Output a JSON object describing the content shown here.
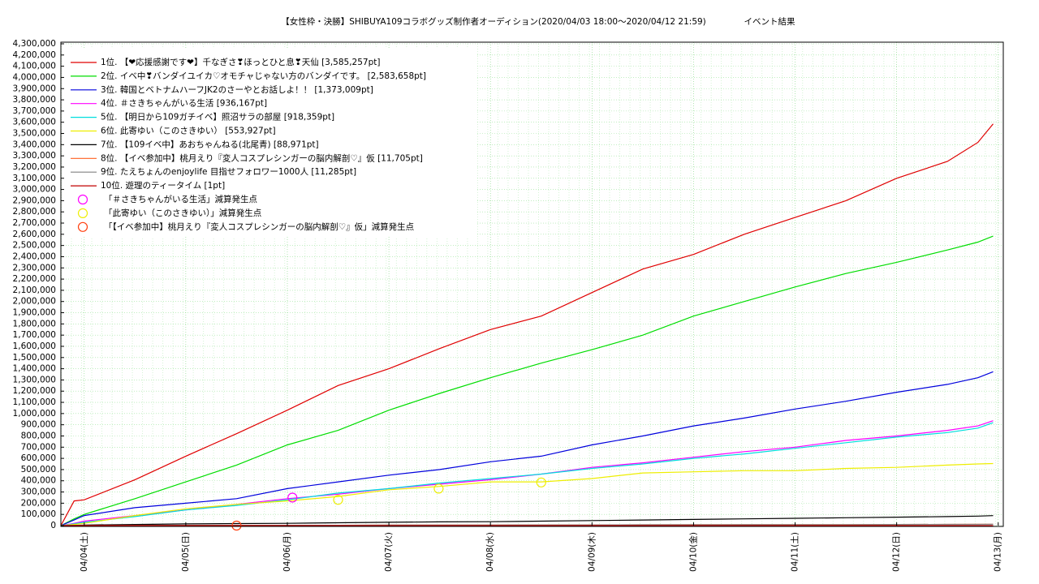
{
  "chart_data": {
    "type": "line",
    "title": "【女性枠・決勝】SHIBUYA109コラボグッズ制作者オーディション(2020/04/03 18:00～2020/04/12 21:59)",
    "subtitle": "イベント結果",
    "grid": true,
    "legend": "top-left",
    "xlim": [
      0.77,
      10.05
    ],
    "xticks": [
      {
        "value": 1,
        "label": "04/04(土)"
      },
      {
        "value": 2,
        "label": "04/05(日)"
      },
      {
        "value": 3,
        "label": "04/06(月)"
      },
      {
        "value": 4,
        "label": "04/07(火)"
      },
      {
        "value": 5,
        "label": "04/08(水)"
      },
      {
        "value": 6,
        "label": "04/09(木)"
      },
      {
        "value": 7,
        "label": "04/10(金)"
      },
      {
        "value": 8,
        "label": "04/11(土)"
      },
      {
        "value": 9,
        "label": "04/12(日)"
      },
      {
        "value": 10,
        "label": "04/13(月)"
      }
    ],
    "ylim": [
      0,
      4300000
    ],
    "yticks": [
      0,
      {
        "value": 100000,
        "label": "100,000"
      },
      {
        "value": 200000,
        "label": "200,000"
      },
      {
        "value": 300000,
        "label": "300,000"
      },
      {
        "value": 400000,
        "label": "400,000"
      },
      {
        "value": 500000,
        "label": "500,000"
      },
      {
        "value": 600000,
        "label": "600,000"
      },
      {
        "value": 700000,
        "label": "700,000"
      },
      {
        "value": 800000,
        "label": "800,000"
      },
      {
        "value": 900000,
        "label": "900,000"
      },
      {
        "value": 1000000,
        "label": "1,000,000"
      },
      {
        "value": 1100000,
        "label": "1,100,000"
      },
      {
        "value": 1200000,
        "label": "1,200,000"
      },
      {
        "value": 1300000,
        "label": "1,300,000"
      },
      {
        "value": 1400000,
        "label": "1,400,000"
      },
      {
        "value": 1500000,
        "label": "1,500,000"
      },
      {
        "value": 1600000,
        "label": "1,600,000"
      },
      {
        "value": 1700000,
        "label": "1,700,000"
      },
      {
        "value": 1800000,
        "label": "1,800,000"
      },
      {
        "value": 1900000,
        "label": "1,900,000"
      },
      {
        "value": 2000000,
        "label": "2,000,000"
      },
      {
        "value": 2100000,
        "label": "2,100,000"
      },
      {
        "value": 2200000,
        "label": "2,200,000"
      },
      {
        "value": 2300000,
        "label": "2,300,000"
      },
      {
        "value": 2400000,
        "label": "2,400,000"
      },
      {
        "value": 2500000,
        "label": "2,500,000"
      },
      {
        "value": 2600000,
        "label": "2,600,000"
      },
      {
        "value": 2700000,
        "label": "2,700,000"
      },
      {
        "value": 2800000,
        "label": "2,800,000"
      },
      {
        "value": 2900000,
        "label": "2,900,000"
      },
      {
        "value": 3000000,
        "label": "3,000,000"
      },
      {
        "value": 3100000,
        "label": "3,100,000"
      },
      {
        "value": 3200000,
        "label": "3,200,000"
      },
      {
        "value": 3300000,
        "label": "3,300,000"
      },
      {
        "value": 3400000,
        "label": "3,400,000"
      },
      {
        "value": 3500000,
        "label": "3,500,000"
      },
      {
        "value": 3600000,
        "label": "3,600,000"
      },
      {
        "value": 3700000,
        "label": "3,700,000"
      },
      {
        "value": 3800000,
        "label": "3,800,000"
      },
      {
        "value": 3900000,
        "label": "3,900,000"
      },
      {
        "value": 4000000,
        "label": "4,000,000"
      },
      {
        "value": 4100000,
        "label": "4,100,000"
      },
      {
        "value": 4200000,
        "label": "4,200,000"
      },
      {
        "value": 4300000,
        "label": "4,300,000"
      }
    ],
    "x": [
      0.77,
      0.9,
      1.0,
      1.5,
      2.0,
      2.5,
      3.0,
      3.5,
      4.0,
      4.5,
      5.0,
      5.5,
      6.0,
      6.5,
      7.0,
      7.5,
      8.0,
      8.5,
      9.0,
      9.5,
      9.8,
      9.95
    ],
    "series": [
      {
        "name": "1位. 【❤応援感謝です❤】千なぎさ❣ほっとひと息❣天仙 [3,585,257pt]",
        "color": "#e00000",
        "values": [
          0,
          220000,
          230000,
          410000,
          620000,
          820000,
          1030000,
          1250000,
          1400000,
          1580000,
          1750000,
          1870000,
          2080000,
          2290000,
          2420000,
          2600000,
          2750000,
          2900000,
          3100000,
          3250000,
          3420000,
          3585257
        ]
      },
      {
        "name": "2位. イベ中❣バンダイユイカ♡オモチャじゃない方のバンダイです。 [2,583,658pt]",
        "color": "#00dd00",
        "values": [
          0,
          60000,
          100000,
          240000,
          390000,
          540000,
          720000,
          850000,
          1030000,
          1180000,
          1320000,
          1450000,
          1570000,
          1700000,
          1870000,
          2000000,
          2130000,
          2250000,
          2350000,
          2460000,
          2530000,
          2583658
        ]
      },
      {
        "name": "3位. 韓国とベトナムハーフJK2のさーやとお話しよ！！ [1,373,009pt]",
        "color": "#0000dd",
        "values": [
          0,
          50000,
          90000,
          160000,
          200000,
          240000,
          330000,
          390000,
          450000,
          500000,
          570000,
          620000,
          720000,
          800000,
          890000,
          960000,
          1040000,
          1110000,
          1190000,
          1260000,
          1320000,
          1373009
        ]
      },
      {
        "name": "4位. ＃さきちゃんがいる生活 [936,167pt]",
        "color": "#ff00ff",
        "values": [
          0,
          20000,
          40000,
          90000,
          140000,
          190000,
          240000,
          280000,
          330000,
          370000,
          410000,
          460000,
          520000,
          560000,
          610000,
          660000,
          700000,
          760000,
          800000,
          850000,
          890000,
          936167
        ]
      },
      {
        "name": "5位. 【明日から109ガチイベ】照沼サラの部屋 [918,359pt]",
        "color": "#00dddd",
        "values": [
          0,
          15000,
          30000,
          80000,
          140000,
          180000,
          230000,
          290000,
          330000,
          380000,
          420000,
          460000,
          510000,
          550000,
          600000,
          640000,
          690000,
          740000,
          790000,
          830000,
          870000,
          918359
        ]
      },
      {
        "name": "6位. 此寄ゆい（このさきゆい） [553,927pt]",
        "color": "#eeee00",
        "values": [
          0,
          10000,
          20000,
          90000,
          150000,
          190000,
          220000,
          260000,
          320000,
          350000,
          390000,
          390000,
          420000,
          470000,
          480000,
          490000,
          490000,
          510000,
          520000,
          540000,
          550000,
          553927
        ]
      },
      {
        "name": "7位. 【109イベ中】あおちゃんねる(北尾青) [88,971pt]",
        "color": "#000000",
        "values": [
          0,
          2000,
          5000,
          10000,
          15000,
          18000,
          20000,
          25000,
          30000,
          33000,
          35000,
          40000,
          45000,
          50000,
          55000,
          60000,
          65000,
          70000,
          75000,
          80000,
          85000,
          88971
        ]
      },
      {
        "name": "8位. 【イベ参加中】桃月えり『変人コスプレシンガーの脳内解剖♡』仮 [11,705pt]",
        "color": "#ff6020",
        "values": [
          0,
          0,
          0,
          1000,
          2000,
          2000,
          3000,
          3000,
          4000,
          5000,
          5000,
          6000,
          6000,
          7000,
          8000,
          8000,
          9000,
          9000,
          10000,
          11000,
          11500,
          11705
        ]
      },
      {
        "name": "9位. たえちょんのenjoylife 目指せフォロワー1000人 [11,285pt]",
        "color": "#808080",
        "values": [
          0,
          0,
          0,
          1000,
          2000,
          2000,
          3000,
          3000,
          4000,
          4000,
          5000,
          6000,
          6000,
          7000,
          7000,
          8000,
          9000,
          9000,
          10000,
          10500,
          11000,
          11285
        ]
      },
      {
        "name": "10位. 遊理のティータイム [1pt]",
        "color": "#c00000",
        "values": [
          0,
          0,
          0,
          0,
          0,
          0,
          0,
          0,
          0,
          0,
          0,
          0,
          0,
          0,
          0,
          0,
          0,
          0,
          0,
          0,
          0,
          1
        ]
      }
    ],
    "markers": [
      {
        "name": "「＃さきちゃんがいる生活」減算発生点",
        "color": "#ff00ff",
        "x": [
          3.05
        ],
        "values": [
          250000
        ]
      },
      {
        "name": "「此寄ゆい（このさきゆい）」減算発生点",
        "color": "#eeee00",
        "x": [
          3.5,
          4.49,
          5.5
        ],
        "values": [
          230000,
          330000,
          385000
        ]
      },
      {
        "name": "「【イベ参加中】桃月えり『変人コスプレシンガーの脳内解剖♡』仮」減算発生点",
        "color": "#ff4010",
        "x": [
          2.5
        ],
        "values": [
          0
        ]
      }
    ]
  }
}
